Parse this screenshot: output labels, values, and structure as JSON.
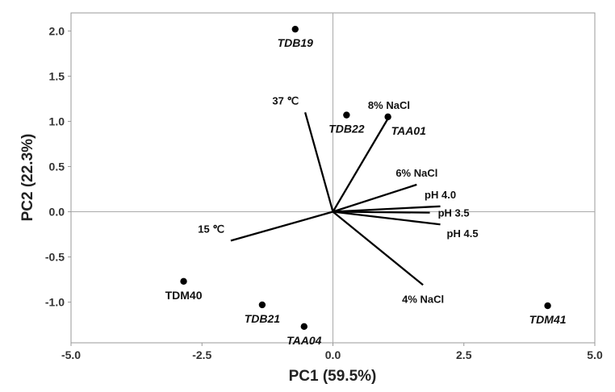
{
  "chart_data": {
    "type": "scatter",
    "subtype": "biplot",
    "xlabel": "PC1 (59.5%)",
    "ylabel": "PC2 (22.3%)",
    "xlim": [
      -5.0,
      5.0
    ],
    "ylim": [
      -1.45,
      2.2
    ],
    "xticks": [
      -5.0,
      -2.5,
      0.0,
      2.5,
      5.0
    ],
    "xtick_labels": [
      "-5.0",
      "-2.5",
      "0.0",
      "2.5",
      "5.0"
    ],
    "yticks": [
      -1.0,
      -0.5,
      0.0,
      0.5,
      1.0,
      1.5,
      2.0
    ],
    "ytick_labels": [
      "-1.0",
      "-0.5",
      "0.0",
      "0.5",
      "1.0",
      "1.5",
      "2.0"
    ],
    "reference_lines": {
      "x": 0,
      "y": 0
    },
    "grid": false,
    "points": [
      {
        "label": "TDB19",
        "x": -0.72,
        "y": 2.02,
        "italic": true,
        "label_side": "below"
      },
      {
        "label": "TDB22",
        "x": 0.26,
        "y": 1.07,
        "italic": true,
        "label_side": "below"
      },
      {
        "label": "TAA01",
        "x": 1.05,
        "y": 1.05,
        "italic": true,
        "label_side": "below-right"
      },
      {
        "label": "TDM40",
        "x": -2.85,
        "y": -0.77,
        "italic": false,
        "label_side": "below"
      },
      {
        "label": "TDB21",
        "x": -1.35,
        "y": -1.03,
        "italic": true,
        "label_side": "below"
      },
      {
        "label": "TAA04",
        "x": -0.55,
        "y": -1.27,
        "italic": true,
        "label_side": "below"
      },
      {
        "label": "TDM41",
        "x": 4.1,
        "y": -1.04,
        "italic": true,
        "label_side": "below"
      }
    ],
    "vectors": [
      {
        "label": "37 ℃",
        "x": -0.53,
        "y": 1.1,
        "label_side": "above-left"
      },
      {
        "label": "8% NaCl",
        "x": 1.07,
        "y": 1.05,
        "label_side": "above"
      },
      {
        "label": "6% NaCl",
        "x": 1.6,
        "y": 0.3,
        "label_side": "above"
      },
      {
        "label": "pH 4.0",
        "x": 2.05,
        "y": 0.06,
        "label_side": "above"
      },
      {
        "label": "pH 3.5",
        "x": 1.85,
        "y": -0.01,
        "label_side": "right"
      },
      {
        "label": "pH 4.5",
        "x": 2.05,
        "y": -0.14,
        "label_side": "below-right"
      },
      {
        "label": "4% NaCl",
        "x": 1.72,
        "y": -0.81,
        "label_side": "below"
      },
      {
        "label": "15 ℃",
        "x": -1.95,
        "y": -0.32,
        "label_side": "above-left"
      }
    ],
    "colors": {
      "axis": "#999999",
      "reference": "#aaaaaa",
      "marks": "#000000"
    }
  }
}
